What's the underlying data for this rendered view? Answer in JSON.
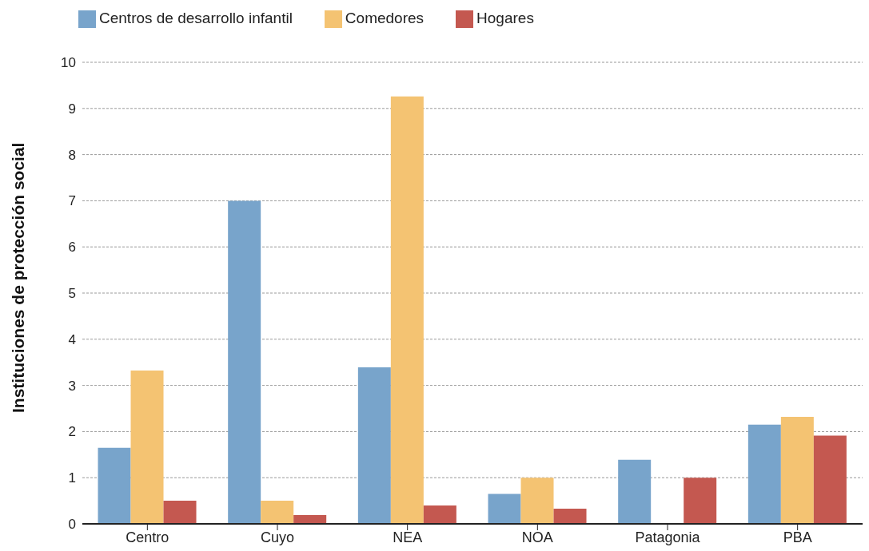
{
  "chart_data": {
    "type": "bar",
    "ylabel": "Instituciones de protección social",
    "categories": [
      "Centro",
      "Cuyo",
      "NEA",
      "NOA",
      "Patagonia",
      "PBA"
    ],
    "series": [
      {
        "name": "Centros de desarrollo infantil",
        "color": "#78a4cb",
        "values": [
          1.65,
          7.0,
          3.39,
          0.65,
          1.39,
          2.15
        ]
      },
      {
        "name": "Comedores",
        "color": "#f4c372",
        "values": [
          3.32,
          0.5,
          9.26,
          1.0,
          0,
          2.32
        ]
      },
      {
        "name": "Hogares",
        "color": "#c45850",
        "values": [
          0.5,
          0.19,
          0.4,
          0.33,
          1.0,
          1.91
        ]
      }
    ],
    "ylim": [
      0,
      10
    ],
    "yticks": [
      0,
      1,
      2,
      3,
      4,
      5,
      6,
      7,
      8,
      9,
      10
    ],
    "grid": "y",
    "legend": "top left"
  }
}
